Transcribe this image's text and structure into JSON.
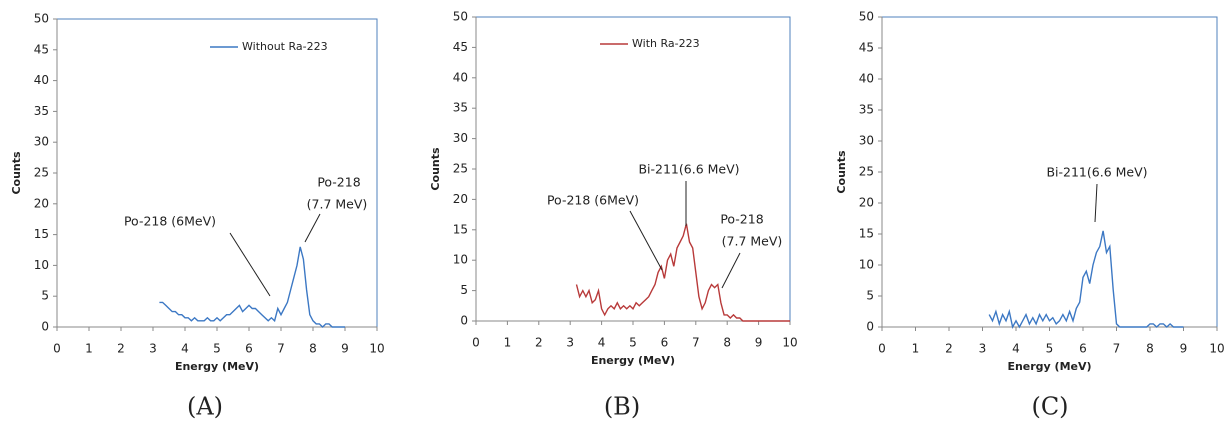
{
  "chart_data": [
    {
      "type": "line",
      "label": "(A)",
      "x_label": "Energy (MeV)",
      "y_label": "Counts",
      "xlim": [
        0,
        10
      ],
      "ylim": [
        0,
        50
      ],
      "xticks": [
        0,
        1,
        2,
        3,
        4,
        5,
        6,
        7,
        8,
        9,
        10
      ],
      "yticks": [
        0,
        5,
        10,
        15,
        20,
        25,
        30,
        35,
        40,
        45,
        50
      ],
      "legend_loc": "upper right",
      "x": [
        3.2,
        3.3,
        3.4,
        3.5,
        3.6,
        3.7,
        3.8,
        3.9,
        4.0,
        4.1,
        4.2,
        4.3,
        4.4,
        4.5,
        4.6,
        4.7,
        4.8,
        4.9,
        5.0,
        5.1,
        5.2,
        5.3,
        5.4,
        5.5,
        5.6,
        5.7,
        5.8,
        5.9,
        6.0,
        6.1,
        6.2,
        6.3,
        6.4,
        6.5,
        6.6,
        6.7,
        6.8,
        6.9,
        7.0,
        7.1,
        7.2,
        7.3,
        7.4,
        7.5,
        7.6,
        7.7,
        7.8,
        7.9,
        8.0,
        8.1,
        8.2,
        8.3,
        8.4,
        8.5,
        8.6,
        8.7,
        8.8,
        8.9,
        9.0
      ],
      "series": [
        {
          "name": "Without Ra-223",
          "color": "#3c78c4",
          "values": [
            4,
            4,
            3.5,
            3,
            2.5,
            2.5,
            2,
            2,
            1.5,
            1.5,
            1,
            1.5,
            1,
            1,
            1,
            1.5,
            1,
            1,
            1.5,
            1,
            1.5,
            2,
            2,
            2.5,
            3,
            3.5,
            2.5,
            3,
            3.5,
            3,
            3,
            2.5,
            2,
            1.5,
            1,
            1.5,
            1,
            3,
            2,
            3,
            4,
            6,
            8,
            10,
            13,
            11,
            6,
            2,
            1,
            0.5,
            0.5,
            0,
            0.5,
            0.5,
            0,
            0,
            0,
            0,
            0
          ]
        }
      ],
      "annotations": [
        {
          "lines": [
            "Po-218 (6MeV)"
          ]
        },
        {
          "lines": [
            "Po-218",
            "(7.7 MeV)"
          ]
        }
      ]
    },
    {
      "type": "line",
      "label": "(B)",
      "x_label": "Energy (MeV)",
      "y_label": "Counts",
      "xlim": [
        0,
        10
      ],
      "ylim": [
        0,
        50
      ],
      "xticks": [
        0,
        1,
        2,
        3,
        4,
        5,
        6,
        7,
        8,
        9,
        10
      ],
      "yticks": [
        0,
        5,
        10,
        15,
        20,
        25,
        30,
        35,
        40,
        45,
        50
      ],
      "legend_loc": "upper right",
      "x": [
        3.2,
        3.3,
        3.4,
        3.5,
        3.6,
        3.7,
        3.8,
        3.9,
        4.0,
        4.1,
        4.2,
        4.3,
        4.4,
        4.5,
        4.6,
        4.7,
        4.8,
        4.9,
        5.0,
        5.1,
        5.2,
        5.3,
        5.4,
        5.5,
        5.6,
        5.7,
        5.8,
        5.9,
        6.0,
        6.1,
        6.2,
        6.3,
        6.4,
        6.5,
        6.6,
        6.7,
        6.8,
        6.9,
        7.0,
        7.1,
        7.2,
        7.3,
        7.4,
        7.5,
        7.6,
        7.7,
        7.8,
        7.9,
        8.0,
        8.1,
        8.2,
        8.3,
        8.4,
        8.5,
        8.6,
        8.7,
        8.8,
        8.9,
        9.0,
        9.1,
        9.2,
        9.3,
        9.4,
        9.5,
        9.6,
        9.7,
        9.8,
        9.9,
        10.0
      ],
      "series": [
        {
          "name": "With Ra-223",
          "color": "#b83a3a",
          "values": [
            6,
            4,
            5,
            4,
            5,
            3,
            3.5,
            5,
            2,
            1,
            2,
            2.5,
            2,
            3,
            2,
            2.5,
            2,
            2.5,
            2,
            3,
            2.5,
            3,
            3.5,
            4,
            5,
            6,
            8,
            9,
            7,
            10,
            11,
            9,
            12,
            13,
            14,
            16,
            13,
            12,
            8,
            4,
            2,
            3,
            5,
            6,
            5.5,
            6,
            3,
            1,
            1,
            0.5,
            1,
            0.5,
            0.5,
            0,
            0,
            0,
            0,
            0,
            0,
            0,
            0,
            0,
            0,
            0,
            0,
            0,
            0,
            0,
            0
          ]
        }
      ],
      "annotations": [
        {
          "lines": [
            "Bi-211(6.6 MeV)"
          ]
        },
        {
          "lines": [
            "Po-218 (6MeV)"
          ]
        },
        {
          "lines": [
            "Po-218",
            "(7.7 MeV)"
          ]
        }
      ]
    },
    {
      "type": "line",
      "label": "(C)",
      "x_label": "Energy (MeV)",
      "y_label": "Counts",
      "xlim": [
        0,
        10
      ],
      "ylim": [
        0,
        50
      ],
      "xticks": [
        0,
        1,
        2,
        3,
        4,
        5,
        6,
        7,
        8,
        9,
        10
      ],
      "yticks": [
        0,
        5,
        10,
        15,
        20,
        25,
        30,
        35,
        40,
        45,
        50
      ],
      "x": [
        3.2,
        3.3,
        3.4,
        3.5,
        3.6,
        3.7,
        3.8,
        3.9,
        4.0,
        4.1,
        4.2,
        4.3,
        4.4,
        4.5,
        4.6,
        4.7,
        4.8,
        4.9,
        5.0,
        5.1,
        5.2,
        5.3,
        5.4,
        5.5,
        5.6,
        5.7,
        5.8,
        5.9,
        6.0,
        6.1,
        6.2,
        6.3,
        6.4,
        6.5,
        6.6,
        6.7,
        6.8,
        6.9,
        7.0,
        7.1,
        7.2,
        7.3,
        7.4,
        7.5,
        7.6,
        7.7,
        7.8,
        7.9,
        8.0,
        8.1,
        8.2,
        8.3,
        8.4,
        8.5,
        8.6,
        8.7,
        8.8,
        8.9,
        9.0
      ],
      "series": [
        {
          "color": "#3c78c4",
          "values": [
            2,
            1,
            2.5,
            0.5,
            2,
            1,
            2.5,
            0,
            1,
            0,
            1,
            2,
            0.5,
            1.5,
            0.5,
            2,
            1,
            2,
            1,
            1.5,
            0.5,
            1,
            2,
            1,
            2.5,
            1,
            3,
            4,
            8,
            9,
            7,
            10,
            12,
            13,
            15.5,
            12,
            13,
            6,
            0.5,
            0,
            0,
            0,
            0,
            0,
            0,
            0,
            0,
            0,
            0.5,
            0.5,
            0,
            0.5,
            0.5,
            0,
            0.5,
            0,
            0,
            0,
            0
          ]
        }
      ],
      "annotations": [
        {
          "lines": [
            "Bi-211(6.6 MeV)"
          ]
        }
      ]
    }
  ]
}
